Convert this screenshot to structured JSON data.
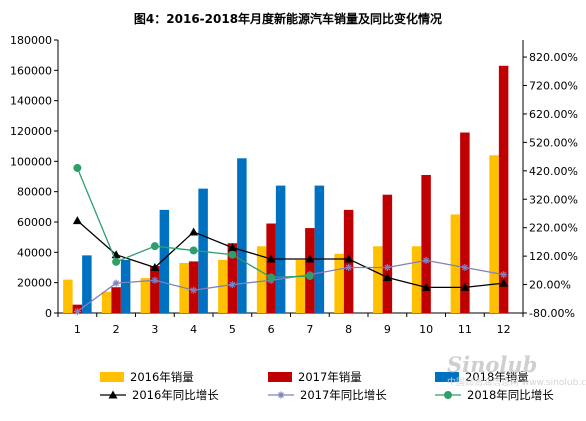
{
  "chart_data": {
    "type": "bar",
    "title": "图4：2016-2018年月度新能源汽车销量及同比变化情况",
    "categories": [
      "1",
      "2",
      "3",
      "4",
      "5",
      "6",
      "7",
      "8",
      "9",
      "10",
      "11",
      "12"
    ],
    "y_left": {
      "min": 0,
      "max": 180000,
      "step": 20000
    },
    "y_right": {
      "min": -80,
      "max": 880,
      "step": 100,
      "ticks": [
        "-80.00%",
        "20.00%",
        "120.00%",
        "220.00%",
        "320.00%",
        "420.00%",
        "520.00%",
        "620.00%",
        "720.00%",
        "820.00%"
      ]
    },
    "bar_series": [
      {
        "name": "2016年销量",
        "color": "#FFC000",
        "values": [
          22000,
          14000,
          23000,
          33000,
          35000,
          44000,
          35000,
          39000,
          44000,
          44000,
          65000,
          104000
        ]
      },
      {
        "name": "2017年销量",
        "color": "#C00000",
        "values": [
          5500,
          17000,
          31000,
          34000,
          46000,
          59000,
          56000,
          68000,
          78000,
          91000,
          119000,
          163000
        ]
      },
      {
        "name": "2018年销量",
        "color": "#0070C0",
        "values": [
          38000,
          35000,
          68000,
          82000,
          102000,
          84000,
          84000,
          null,
          null,
          null,
          null,
          null
        ]
      }
    ],
    "line_series": [
      {
        "name": "2016年同比增长",
        "color": "#000000",
        "marker": "triangle",
        "values": [
          245,
          125,
          80,
          205,
          150,
          110,
          110,
          110,
          45,
          10,
          10,
          25
        ]
      },
      {
        "name": "2017年同比增长",
        "color": "#8080C0",
        "marker": "asterisk",
        "values": [
          -75,
          25,
          35,
          0,
          20,
          35,
          55,
          80,
          80,
          105,
          80,
          55
        ]
      },
      {
        "name": "2018年同比增长",
        "color": "#2E9F6A",
        "marker": "circle",
        "values": [
          430,
          100,
          155,
          140,
          125,
          45,
          50,
          null,
          null,
          null,
          null,
          null
        ]
      }
    ]
  },
  "watermark": {
    "main": "Sinolub",
    "sub": "中国润滑油信息网 www.sinolub.com"
  }
}
